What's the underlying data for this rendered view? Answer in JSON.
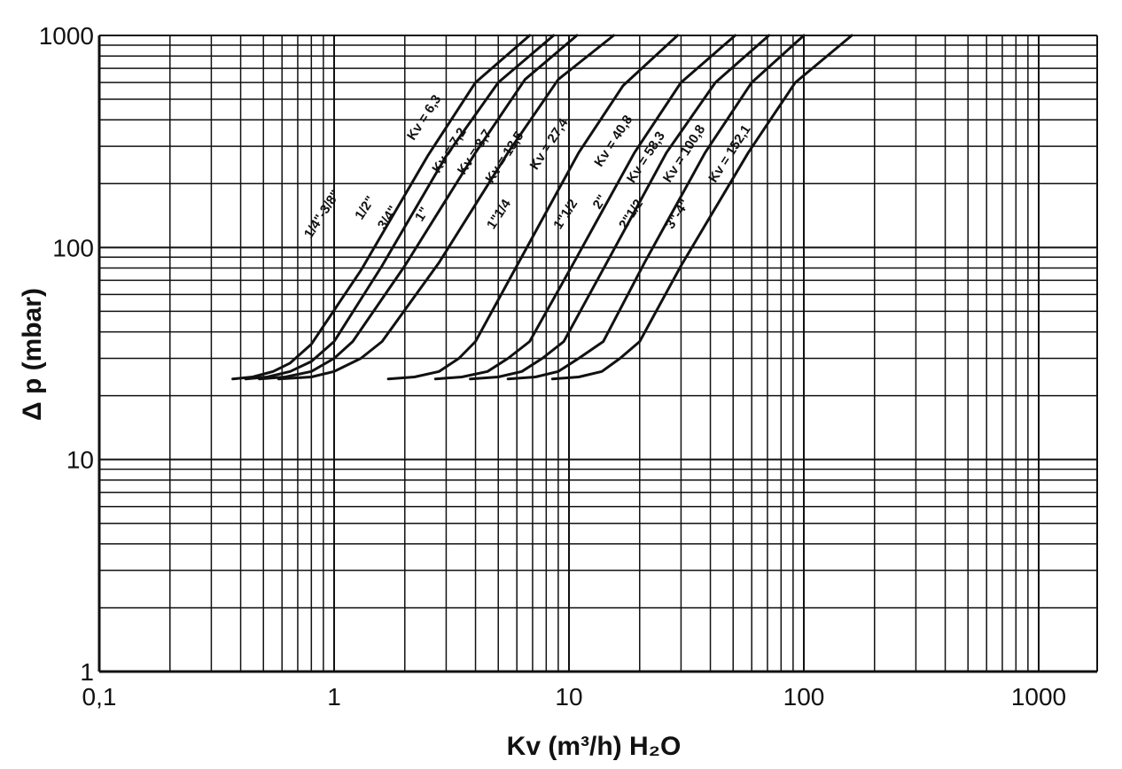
{
  "chart_data": {
    "type": "line",
    "title": "",
    "xlabel": "Kv (m³/h) H₂O",
    "ylabel": "Δ p (mbar)",
    "x_scale": "log",
    "y_scale": "log",
    "xlim": [
      0.1,
      1700
    ],
    "ylim": [
      1,
      1000
    ],
    "x_tick_labels": [
      "0,1",
      "1",
      "10",
      "100",
      "1000"
    ],
    "x_tick_values": [
      0.1,
      1,
      10,
      100,
      1000
    ],
    "y_tick_labels": [
      "1",
      "10",
      "100",
      "1000"
    ],
    "y_tick_values": [
      1,
      10,
      100,
      1000
    ],
    "grid": true,
    "line_color": "#111111",
    "series": [
      {
        "name": "1/4\"-3/8\"",
        "kv_label": "Kv = 6,3",
        "x": [
          0.37,
          0.45,
          0.55,
          0.65,
          0.8,
          1.3,
          2.5,
          4.0,
          6.8
        ],
        "y": [
          24,
          24.5,
          26,
          28.5,
          35,
          78,
          270,
          600,
          1000
        ]
      },
      {
        "name": "1/2\"",
        "kv_label": "Kv = 7,2",
        "x": [
          0.42,
          0.52,
          0.65,
          0.8,
          1.0,
          1.6,
          3.0,
          5.0,
          8.6
        ],
        "y": [
          24,
          24.5,
          26,
          29,
          36,
          82,
          270,
          600,
          1000
        ]
      },
      {
        "name": "3/4\"",
        "kv_label": "Kv = 8,7",
        "x": [
          0.48,
          0.62,
          0.8,
          1.0,
          1.2,
          2.0,
          4.0,
          6.5,
          10.8
        ],
        "y": [
          24,
          24.5,
          26,
          30,
          36,
          82,
          280,
          620,
          1000
        ]
      },
      {
        "name": "1\"",
        "kv_label": "Kv = 13,5",
        "x": [
          0.58,
          0.8,
          1.0,
          1.3,
          1.6,
          2.8,
          5.5,
          9.0,
          15.5
        ],
        "y": [
          24,
          24.5,
          26,
          30,
          36,
          85,
          280,
          620,
          1000
        ]
      },
      {
        "name": "1\"1/4",
        "kv_label": "Kv = 27,4",
        "x": [
          1.7,
          2.2,
          2.8,
          3.4,
          4.0,
          6.0,
          11.0,
          17.0,
          29.0
        ],
        "y": [
          24,
          24.5,
          26,
          30,
          36,
          82,
          280,
          580,
          1000
        ]
      },
      {
        "name": "1\"1/2",
        "kv_label": "Kv = 40,8",
        "x": [
          2.7,
          3.5,
          4.5,
          5.5,
          6.8,
          10.5,
          19.0,
          30.0,
          51.0
        ],
        "y": [
          24,
          24.5,
          26,
          30,
          36,
          85,
          280,
          600,
          1000
        ]
      },
      {
        "name": "2\"",
        "kv_label": "Kv = 58,3",
        "x": [
          3.8,
          5.0,
          6.3,
          7.7,
          9.5,
          14.5,
          26.0,
          42.0,
          71.0
        ],
        "y": [
          24,
          24.5,
          26,
          30,
          36,
          85,
          280,
          600,
          1000
        ]
      },
      {
        "name": "2\"1/2",
        "kv_label": "Kv = 100,8",
        "x": [
          5.5,
          7.2,
          9.0,
          11.0,
          14.0,
          21.0,
          38.0,
          60.0,
          100.0
        ],
        "y": [
          24,
          24.5,
          26,
          30,
          36,
          85,
          280,
          600,
          1000
        ]
      },
      {
        "name": "3\"-4\"",
        "kv_label": "Kv = 152,1",
        "x": [
          8.5,
          11.0,
          13.8,
          16.5,
          20.0,
          30.0,
          58.0,
          92.0,
          160.0
        ],
        "y": [
          24,
          24.5,
          26,
          30,
          36,
          82,
          280,
          600,
          1000
        ]
      }
    ],
    "labels": [
      {
        "text": "1/4\"-3/8\"",
        "x": 0.92,
        "y": 140
      },
      {
        "text": "1/2\"",
        "x": 1.4,
        "y": 150
      },
      {
        "text": "3/4\"",
        "x": 1.75,
        "y": 135
      },
      {
        "text": "1\"",
        "x": 2.45,
        "y": 140
      },
      {
        "text": "1\"1/4",
        "x": 5.2,
        "y": 140
      },
      {
        "text": "1\"1/2",
        "x": 10.0,
        "y": 140
      },
      {
        "text": "2\"",
        "x": 14.0,
        "y": 160
      },
      {
        "text": "2\"1/2",
        "x": 19.0,
        "y": 140
      },
      {
        "text": "3\"-4\"",
        "x": 30.0,
        "y": 140
      },
      {
        "text": "Kv = 6,3",
        "x": 2.5,
        "y": 400
      },
      {
        "text": "Kv = 7,2",
        "x": 3.2,
        "y": 280
      },
      {
        "text": "Kv = 8,7",
        "x": 4.1,
        "y": 275
      },
      {
        "text": "Kv = 13,5",
        "x": 5.5,
        "y": 260
      },
      {
        "text": "Kv = 27,4",
        "x": 8.5,
        "y": 300
      },
      {
        "text": "Kv = 40,8",
        "x": 16.0,
        "y": 310
      },
      {
        "text": "Kv = 58,3",
        "x": 22.0,
        "y": 260
      },
      {
        "text": "Kv = 100,8",
        "x": 32.0,
        "y": 270
      },
      {
        "text": "Kv = 152,1",
        "x": 50.0,
        "y": 270
      }
    ]
  }
}
